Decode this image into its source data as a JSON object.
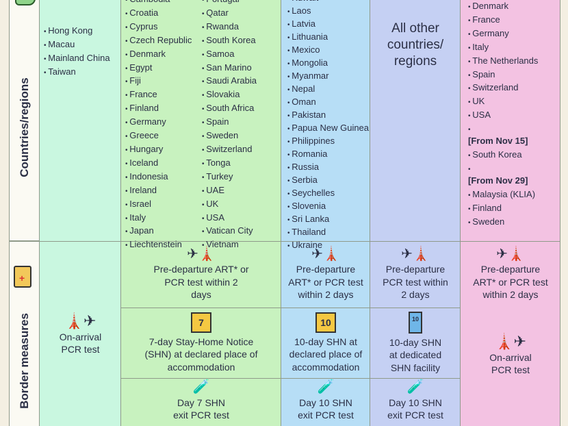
{
  "headers": {
    "countries": "Countries/regions",
    "border": "Border measures"
  },
  "colors": {
    "mint": "#c9f7e0",
    "green": "#c8f2bf",
    "blue": "#b7def6",
    "lavender": "#c5d0f3",
    "pink": "#f3c2e2"
  },
  "col1": {
    "countries": [
      "Hong Kong",
      "Macau",
      "Mainland China",
      "Taiwan"
    ],
    "measure": "On-arrival PCR test"
  },
  "col2": {
    "countries_a": [
      "Cambodia",
      "Croatia",
      "Cyprus",
      "Czech Republic",
      "Denmark",
      "Egypt",
      "Fiji",
      "France",
      "Finland",
      "Germany",
      "Greece",
      "Hungary",
      "Iceland",
      "Indonesia",
      "Ireland",
      "Israel",
      "Italy",
      "Japan",
      "Liechtenstein"
    ],
    "countries_b": [
      "Portugal",
      "Qatar",
      "Rwanda",
      "South Korea",
      "Samoa",
      "San Marino",
      "Saudi Arabia",
      "Slovakia",
      "South Africa",
      "Spain",
      "Sweden",
      "Switzerland",
      "Tonga",
      "Turkey",
      "UAE",
      "UK",
      "USA",
      "Vatican City",
      "Vietnam"
    ],
    "predeparture": "Pre-departure ART* or PCR test within 2 days",
    "shn": "7-day Stay-Home Notice (SHN) at declared place of accommodation",
    "shn_days": "7",
    "exit": "Day 7 SHN exit PCR test"
  },
  "col3": {
    "countries": [
      "Kuwait",
      "Laos",
      "Latvia",
      "Lithuania",
      "Mexico",
      "Mongolia",
      "Myanmar",
      "Nepal",
      "Oman",
      "Pakistan",
      "Papua New Guinea",
      "Philippines",
      "Romania",
      "Russia",
      "Serbia",
      "Seychelles",
      "Slovenia",
      "Sri Lanka",
      "Thailand",
      "Ukraine"
    ],
    "predeparture": "Pre-departure ART* or PCR test within 2 days",
    "shn": "10-day SHN at declared place of accommodation",
    "shn_days": "10",
    "exit": "Day 10 SHN exit PCR test"
  },
  "col4": {
    "label": "All other countries/ regions",
    "predeparture": "Pre-departure PCR test within 2 days",
    "shn": "10-day SHN at dedicated SHN facility",
    "shn_days": "10",
    "exit": "Day 10 SHN exit PCR test"
  },
  "col5": {
    "countries": [
      "Denmark",
      "France",
      "Germany",
      "Italy",
      "The Netherlands",
      "Spain",
      "Switzerland",
      "UK",
      "USA"
    ],
    "nov15_label": "[From Nov 15]",
    "nov15": [
      "South Korea"
    ],
    "nov29_label": "[From Nov 29]",
    "nov29": [
      "Malaysia (KLIA)",
      "Finland",
      "Sweden"
    ],
    "predeparture": "Pre-departure ART* or PCR test within 2 days",
    "measure": "On-arrival PCR test"
  }
}
